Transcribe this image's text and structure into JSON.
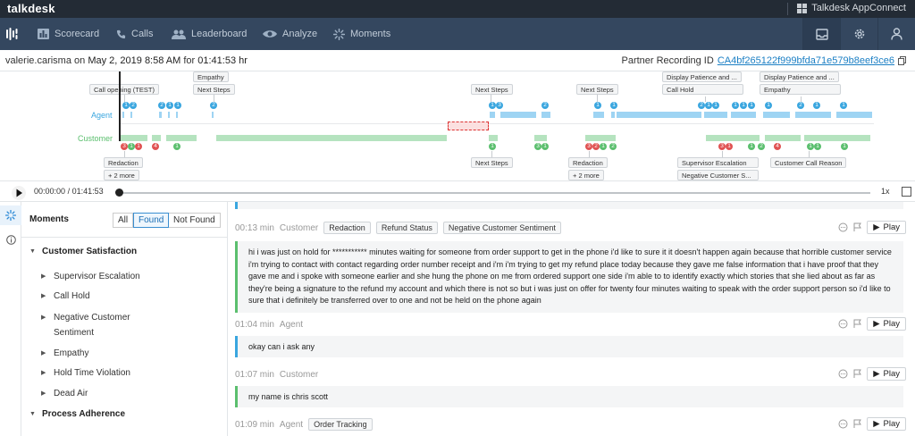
{
  "app": {
    "brand": "talkdesk",
    "appconnect": "Talkdesk AppConnect"
  },
  "nav": {
    "items": [
      {
        "label": "Scorecard",
        "icon": "bar-chart-icon"
      },
      {
        "label": "Calls",
        "icon": "phone-icon"
      },
      {
        "label": "Leaderboard",
        "icon": "people-icon"
      },
      {
        "label": "Analyze",
        "icon": "eye-icon"
      },
      {
        "label": "Moments",
        "icon": "sparkle-icon"
      }
    ],
    "right_icons": [
      "inbox-icon",
      "gear-icon",
      "user-icon"
    ]
  },
  "recording": {
    "user": "valerie.carisma",
    "on_text": "on",
    "date": "May 2, 2019 8:58 AM",
    "for_text": "for",
    "duration": "01:41:53 hr",
    "partner_label": "Partner Recording ID",
    "partner_id": "CA4bf265122f999bfda71e579b8eef3ce6"
  },
  "timeline": {
    "agent_label": "Agent",
    "customer_label": "Customer",
    "top_tags": [
      "Call opening (TEST)",
      "Empathy",
      "Next Steps",
      "Next Steps",
      "Next Steps",
      "Display Patience and ...",
      "Call Hold",
      "Display Patience and ...",
      "Empathy"
    ],
    "bottom_tags": [
      "Redaction",
      "+ 2 more",
      "Next Steps",
      "Redaction",
      "+ 2 more",
      "Supervisor Escalation",
      "Negative Customer S...",
      "Customer Call Reason"
    ],
    "agent_markers": [
      "1",
      "2",
      "2",
      "1",
      "1",
      "2",
      "1",
      "3",
      "2",
      "1",
      "1",
      "2",
      "1",
      "1",
      "1",
      "1",
      "1",
      "1",
      "2",
      "1",
      "1"
    ],
    "customer_markers": [
      "3",
      "1",
      "1",
      "4",
      "1",
      "1",
      "3",
      "1",
      "3",
      "2",
      "1",
      "2",
      "3",
      "1",
      "1",
      "2",
      "4",
      "1",
      "1",
      "1"
    ]
  },
  "player": {
    "current": "00:00:00",
    "sep": "/",
    "total": "01:41:53",
    "speed": "1x"
  },
  "moments": {
    "title": "Moments",
    "filters": [
      "All",
      "Found",
      "Not Found"
    ],
    "active_filter": "Found",
    "categories": [
      {
        "name": "Customer Satisfaction",
        "items": [
          "Supervisor Escalation",
          "Call Hold",
          "Negative Customer",
          "Sentiment",
          "Empathy",
          "Hold Time Violation",
          "Dead Air"
        ]
      },
      {
        "name": "Process Adherence",
        "items": []
      }
    ]
  },
  "transcript": {
    "play_label": "Play",
    "segments": [
      {
        "time": "00:13 min",
        "speaker": "Customer",
        "tags": [
          "Redaction",
          "Refund Status",
          "Negative Customer Sentiment"
        ],
        "text": "hi i was just on hold for *********** minutes waiting for someone from order support to get in the phone i'd like to sure it it doesn't happen again because that horrible customer service i'm trying to contact with contact regarding order number receipt and i'm i'm trying to get my refund place today because they gave me false information that i have proof that they gave me and i spoke with someone earlier and she hung the phone on me from ordered support one side i'm able to to identify exactly which stories that she lied about as far as they're being a signature to the refund my account and which there is not so but i was just on offer for twenty four minutes waiting to speak with the order support person so i'd like to sure that i definitely be transferred over to one and not be held on the phone again"
      },
      {
        "time": "01:04 min",
        "speaker": "Agent",
        "tags": [],
        "text": "okay can i ask any"
      },
      {
        "time": "01:07 min",
        "speaker": "Customer",
        "tags": [],
        "text": "my name is chris scott"
      },
      {
        "time": "01:09 min",
        "speaker": "Agent",
        "tags": [
          "Order Tracking"
        ],
        "text": ""
      }
    ]
  },
  "colors": {
    "topbar": "#232b35",
    "navbar": "#34475f",
    "agent": "#3aa6df",
    "customer": "#5bbf6e",
    "negative": "#e05252",
    "link": "#1b7fc4"
  }
}
